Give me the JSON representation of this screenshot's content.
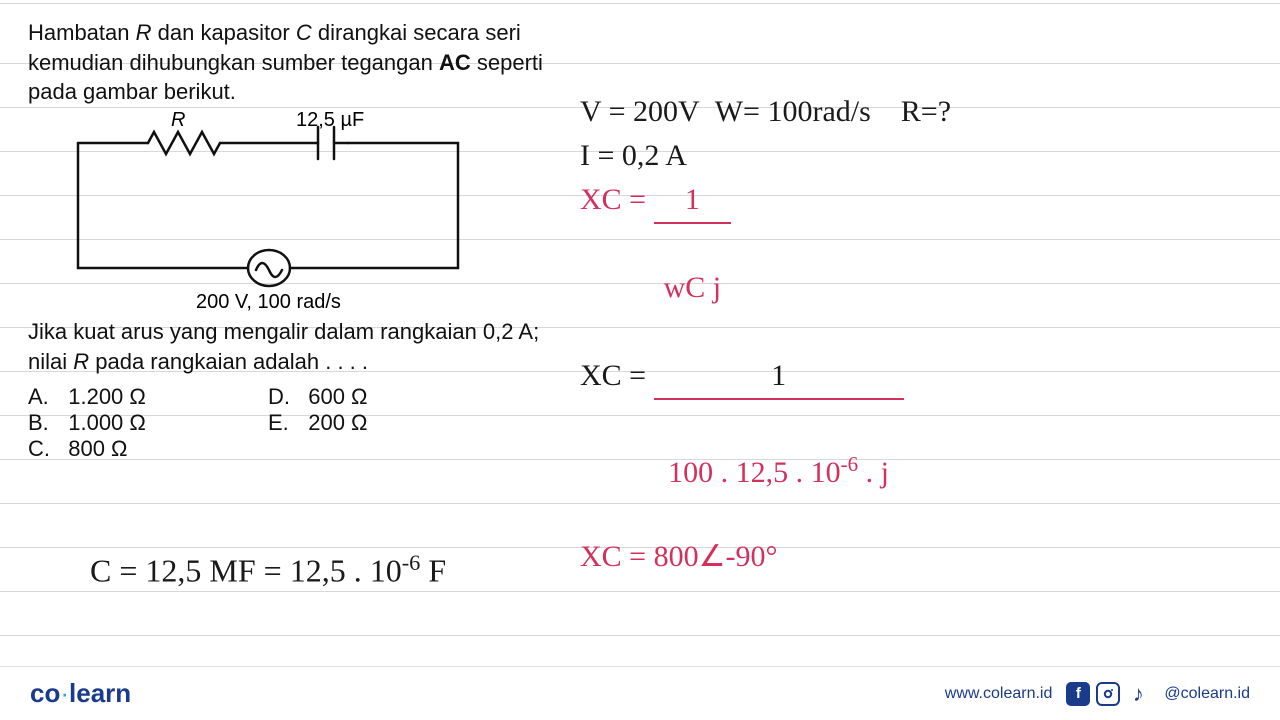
{
  "question": {
    "para1_html": "Hambatan <i>R</i> dan kapasitor <i>C</i> dirangkai secara seri kemudian dihubungkan sumber tegangan <b>AC</b> seperti pada gambar berikut.",
    "para2_html": "Jika kuat arus yang mengalir dalam rangkaian 0,2 A; nilai <i>R</i> pada rangkaian adalah . . . .",
    "circuit": {
      "label_R": "R",
      "label_C": "12,5 µF",
      "label_source": "200 V, 100 rad/s",
      "stroke": "#111111",
      "stroke_width": 2.5
    },
    "options": {
      "A": "1.200 Ω",
      "B": "1.000 Ω",
      "C": "800 Ω",
      "D": "600 Ω",
      "E": "200 Ω"
    }
  },
  "handwriting": {
    "color_black": "#1a1a1a",
    "color_red": "#d4305c",
    "lines": {
      "l1a": "V = 200V",
      "l1b": "W= 100rad/s",
      "l1c": "R=?",
      "l2": "I = 0,2 A",
      "l3_lhs": "XC =",
      "l3_num": "1",
      "l3_den": "wC j",
      "l4_lhs": "XC =",
      "l4_num": "1",
      "l4_den_html": "100 . 12,5 . 10<sup>-6</sup> . j",
      "l5_html": "XC = 800∠-90°",
      "bottom_html": "C = 12,5 MF = 12,5 . 10<sup>-6</sup> F"
    }
  },
  "footer": {
    "logo_co": "co",
    "logo_dot": "·",
    "logo_learn": "learn",
    "url": "www.colearn.id",
    "handle": "@colearn.id"
  },
  "colors": {
    "brand": "#1a3a8a",
    "rule": "#d8d8d8",
    "bg": "#ffffff"
  }
}
